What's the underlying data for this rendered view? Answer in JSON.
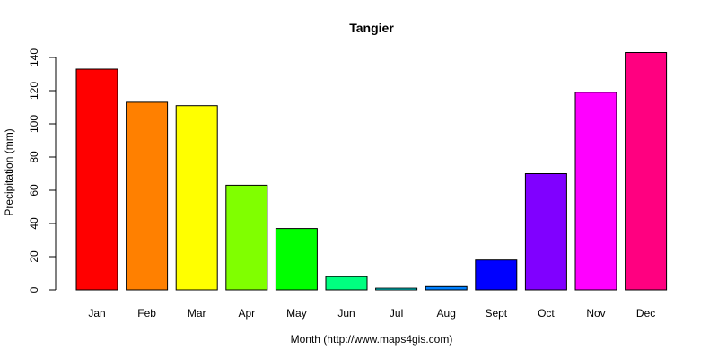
{
  "chart_data": {
    "type": "bar",
    "title": "Tangier",
    "xlabel": "Month (http://www.maps4gis.com)",
    "ylabel": "Precipitation (mm)",
    "ylim": [
      0,
      140
    ],
    "yticks": [
      "0",
      "20",
      "40",
      "60",
      "80",
      "100",
      "120",
      "140"
    ],
    "categories": [
      "Jan",
      "Feb",
      "Mar",
      "Apr",
      "May",
      "Jun",
      "Jul",
      "Aug",
      "Sept",
      "Oct",
      "Nov",
      "Dec"
    ],
    "values": [
      133,
      113,
      111,
      63,
      37,
      8,
      1,
      2,
      18,
      70,
      119,
      143
    ],
    "colors": [
      "#FF0000",
      "#FF8000",
      "#FFFF00",
      "#80FF00",
      "#00FF00",
      "#00FF80",
      "#00FFFF",
      "#0080FF",
      "#0000FF",
      "#8000FF",
      "#FF00FF",
      "#FF0080"
    ],
    "grid": false,
    "legend": "none"
  }
}
